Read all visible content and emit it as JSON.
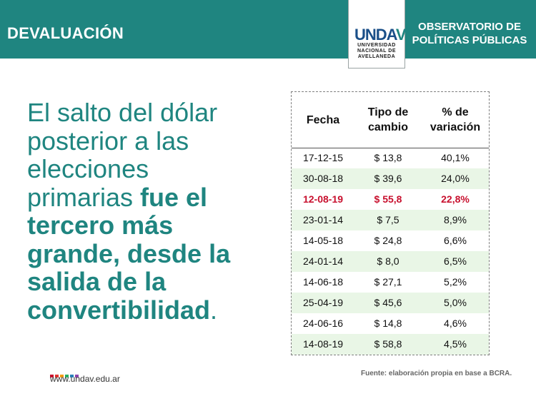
{
  "header": {
    "title": "DEVALUACIÓN",
    "right_lines": [
      "OBSERVATORIO DE",
      "POLÍTICAS PÚBLICAS"
    ],
    "bg_color": "#1f8580"
  },
  "logo": {
    "mark_prefix": "UNDA",
    "mark_suffix": "V",
    "lines": [
      "UNIVERSIDAD",
      "NACIONAL DE",
      "AVELLANEDA"
    ]
  },
  "headline": {
    "line1": "El salto del dólar",
    "line2": "posterior a las",
    "line3": "elecciones",
    "line4_normal": "primarias ",
    "line4_bold": "fue el",
    "line5": "tercero más",
    "line6": "grande, desde la",
    "line7": "salida de la",
    "line8": "convertibilidad",
    "period": "."
  },
  "table": {
    "headers": {
      "fecha": "Fecha",
      "tipo_1": "Tipo de",
      "tipo_2": "cambio",
      "var_1": "% de",
      "var_2": "variación"
    },
    "rows": [
      {
        "fecha": "17-12-15",
        "tipo": "$ 13,8",
        "var": "40,1%"
      },
      {
        "fecha": "30-08-18",
        "tipo": "$ 39,6",
        "var": "24,0%"
      },
      {
        "fecha": "12-08-19",
        "tipo": "$ 55,8",
        "var": "22,8%"
      },
      {
        "fecha": "23-01-14",
        "tipo": "$ 7,5",
        "var": "8,9%"
      },
      {
        "fecha": "14-05-18",
        "tipo": "$ 24,8",
        "var": "6,6%"
      },
      {
        "fecha": "24-01-14",
        "tipo": "$ 8,0",
        "var": "6,5%"
      },
      {
        "fecha": "14-06-18",
        "tipo": "$ 27,1",
        "var": "5,2%"
      },
      {
        "fecha": "25-04-19",
        "tipo": "$ 45,6",
        "var": "5,0%"
      },
      {
        "fecha": "24-06-16",
        "tipo": "$ 14,8",
        "var": "4,6%"
      },
      {
        "fecha": "14-08-19",
        "tipo": "$ 58,8",
        "var": "4,5%"
      }
    ],
    "highlight_color": "#c8102e",
    "alt_row_color": "#e9f6e6"
  },
  "footer": {
    "url": "www.undav.edu.ar",
    "source": "Fuente: elaboración propia en base a BCRA.",
    "dot_colors": [
      "#c8102e",
      "#e3342f",
      "#f39c12",
      "#27ae60",
      "#2980b9",
      "#8e44ad"
    ]
  }
}
